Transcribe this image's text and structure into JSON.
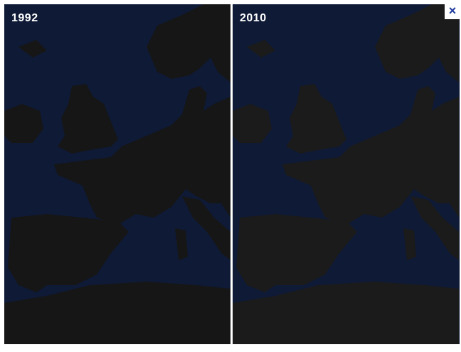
{
  "panels": [
    {
      "label": "1992"
    },
    {
      "label": "2010"
    }
  ],
  "close_button": {
    "label": "×"
  }
}
